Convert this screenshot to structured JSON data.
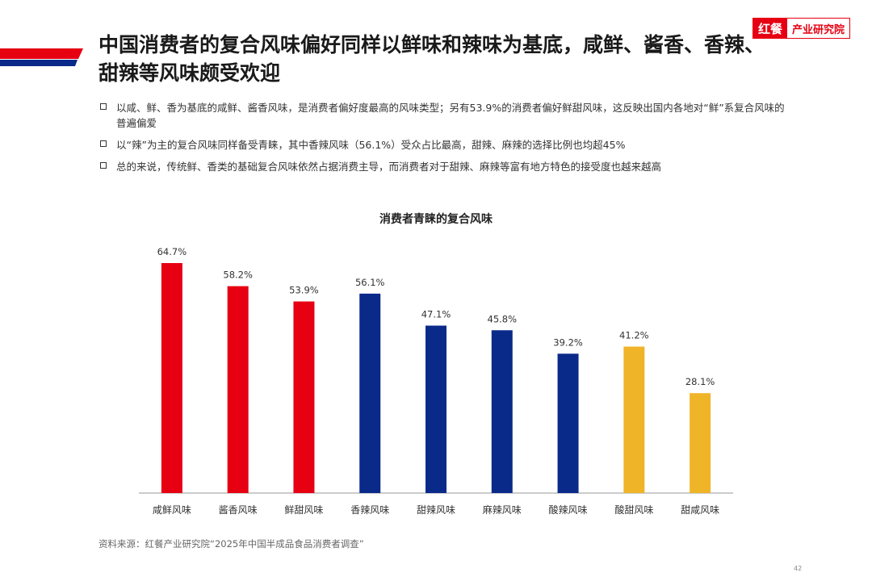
{
  "logo": {
    "mark": "红餐",
    "text": "产业研究院"
  },
  "title": "中国消费者的复合风味偏好同样以鲜味和辣味为基底，咸鲜、酱香、香辣、甜辣等风味颇受欢迎",
  "bullets": [
    "以咸、鲜、香为基底的咸鲜、酱香风味，是消费者偏好度最高的风味类型；另有53.9%的消费者偏好鲜甜风味，这反映出国内各地对“鲜”系复合风味的普遍偏爱",
    "以“辣”为主的复合风味同样备受青睐，其中香辣风味（56.1%）受众占比最高，甜辣、麻辣的选择比例也均超45%",
    "总的来说，传统鲜、香类的基础复合风味依然占据消费主导，而消费者对于甜辣、麻辣等富有地方特色的接受度也越来越高"
  ],
  "chart_data": {
    "type": "bar",
    "title": "消费者青睐的复合风味",
    "categories": [
      "咸鲜风味",
      "酱香风味",
      "鲜甜风味",
      "香辣风味",
      "甜辣风味",
      "麻辣风味",
      "酸辣风味",
      "酸甜风味",
      "甜咸风味"
    ],
    "values": [
      64.7,
      58.2,
      53.9,
      56.1,
      47.1,
      45.8,
      39.2,
      41.2,
      28.1
    ],
    "data_labels": [
      "64.7%",
      "58.2%",
      "53.9%",
      "56.1%",
      "47.1%",
      "45.8%",
      "39.2%",
      "41.2%",
      "28.1%"
    ],
    "bar_colors": [
      "#e60012",
      "#e60012",
      "#e60012",
      "#0a2a8a",
      "#0a2a8a",
      "#0a2a8a",
      "#0a2a8a",
      "#f0b429",
      "#f0b429"
    ],
    "ylim": [
      0,
      70
    ],
    "unit": "%",
    "grid": false,
    "legend": "none"
  },
  "source": "资料来源：红餐产业研究院“2025年中国半成品食品消费者调查”",
  "page_number": "42"
}
